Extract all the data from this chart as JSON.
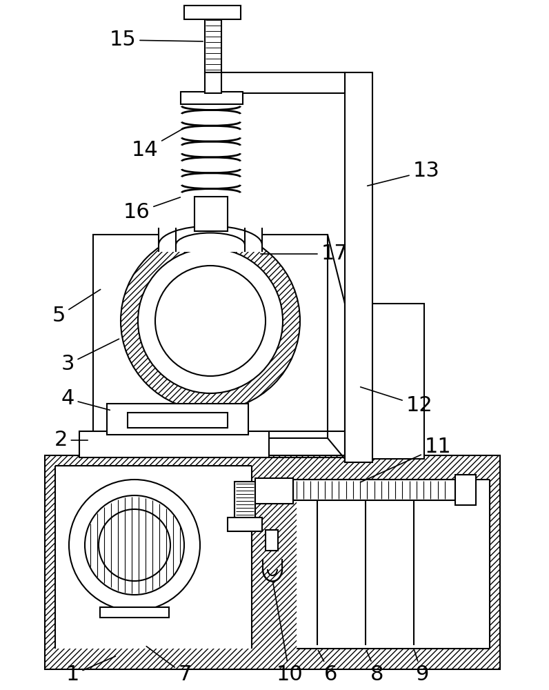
{
  "bg_color": "#ffffff",
  "line_color": "#000000",
  "label_fontsize": 22
}
